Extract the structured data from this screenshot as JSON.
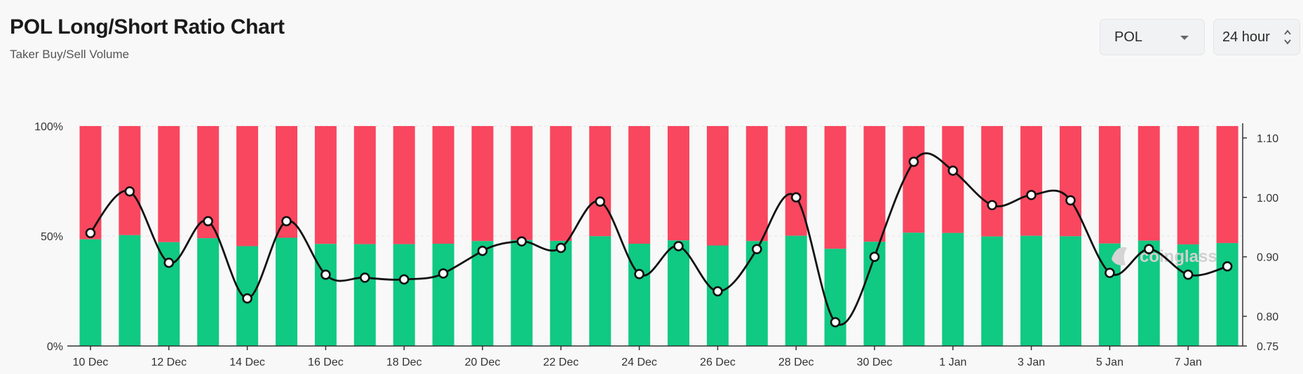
{
  "header": {
    "title": "POL Long/Short Ratio Chart",
    "subtitle": "Taker Buy/Sell Volume"
  },
  "controls": {
    "symbol": "POL",
    "interval": "24 hour"
  },
  "watermark": "coinglass",
  "colors": {
    "long": "#10c982",
    "short": "#f9475f",
    "line": "#111111",
    "grid": "#e4e4e4"
  },
  "chart_data": {
    "type": "bar",
    "stacked": true,
    "categories": [
      "10 Dec",
      "11 Dec",
      "12 Dec",
      "13 Dec",
      "14 Dec",
      "15 Dec",
      "16 Dec",
      "17 Dec",
      "18 Dec",
      "19 Dec",
      "20 Dec",
      "21 Dec",
      "22 Dec",
      "23 Dec",
      "24 Dec",
      "25 Dec",
      "26 Dec",
      "27 Dec",
      "28 Dec",
      "29 Dec",
      "30 Dec",
      "31 Dec",
      "1 Jan",
      "2 Jan",
      "3 Jan",
      "4 Jan",
      "5 Jan",
      "6 Jan",
      "7 Jan",
      "8 Jan"
    ],
    "x_tick_labels": [
      "10 Dec",
      "12 Dec",
      "14 Dec",
      "16 Dec",
      "18 Dec",
      "20 Dec",
      "22 Dec",
      "24 Dec",
      "26 Dec",
      "28 Dec",
      "30 Dec",
      "1 Jan",
      "3 Jan",
      "5 Jan",
      "7 Jan"
    ],
    "series": [
      {
        "values": [
          48.5,
          50.4,
          47.2,
          49.0,
          45.4,
          49.2,
          46.4,
          46.3,
          46.3,
          46.5,
          47.7,
          48.2,
          47.8,
          49.9,
          46.5,
          48.0,
          45.7,
          47.7,
          50.1,
          44.2,
          47.4,
          51.5,
          51.4,
          49.8,
          50.1,
          49.9,
          46.6,
          47.9,
          46.2,
          46.8
        ]
      },
      {
        "values": [
          51.5,
          49.6,
          52.8,
          51.0,
          54.6,
          50.8,
          53.6,
          53.7,
          53.7,
          53.5,
          52.3,
          51.8,
          52.2,
          50.1,
          53.5,
          52.0,
          54.3,
          52.3,
          49.9,
          55.8,
          52.6,
          48.5,
          48.6,
          50.2,
          49.9,
          50.1,
          53.4,
          52.1,
          53.8,
          53.2
        ]
      },
      {
        "values": [
          0.94,
          1.01,
          0.89,
          0.96,
          0.83,
          0.96,
          0.87,
          0.865,
          0.862,
          0.872,
          0.91,
          0.926,
          0.915,
          0.993,
          0.871,
          0.918,
          0.842,
          0.913,
          1.0,
          0.79,
          0.9,
          1.06,
          1.045,
          0.987,
          1.004,
          0.995,
          0.873,
          0.913,
          0.87,
          0.884
        ]
      }
    ],
    "y_left": {
      "ticks": [
        "0%",
        "50%",
        "100%"
      ],
      "ylim": [
        0,
        100
      ]
    },
    "y_right": {
      "ticks": [
        "0.75",
        "0.80",
        "0.90",
        "1.00",
        "1.10"
      ],
      "ylim": [
        0.75,
        1.12
      ]
    },
    "grid": true,
    "legend": "none"
  }
}
